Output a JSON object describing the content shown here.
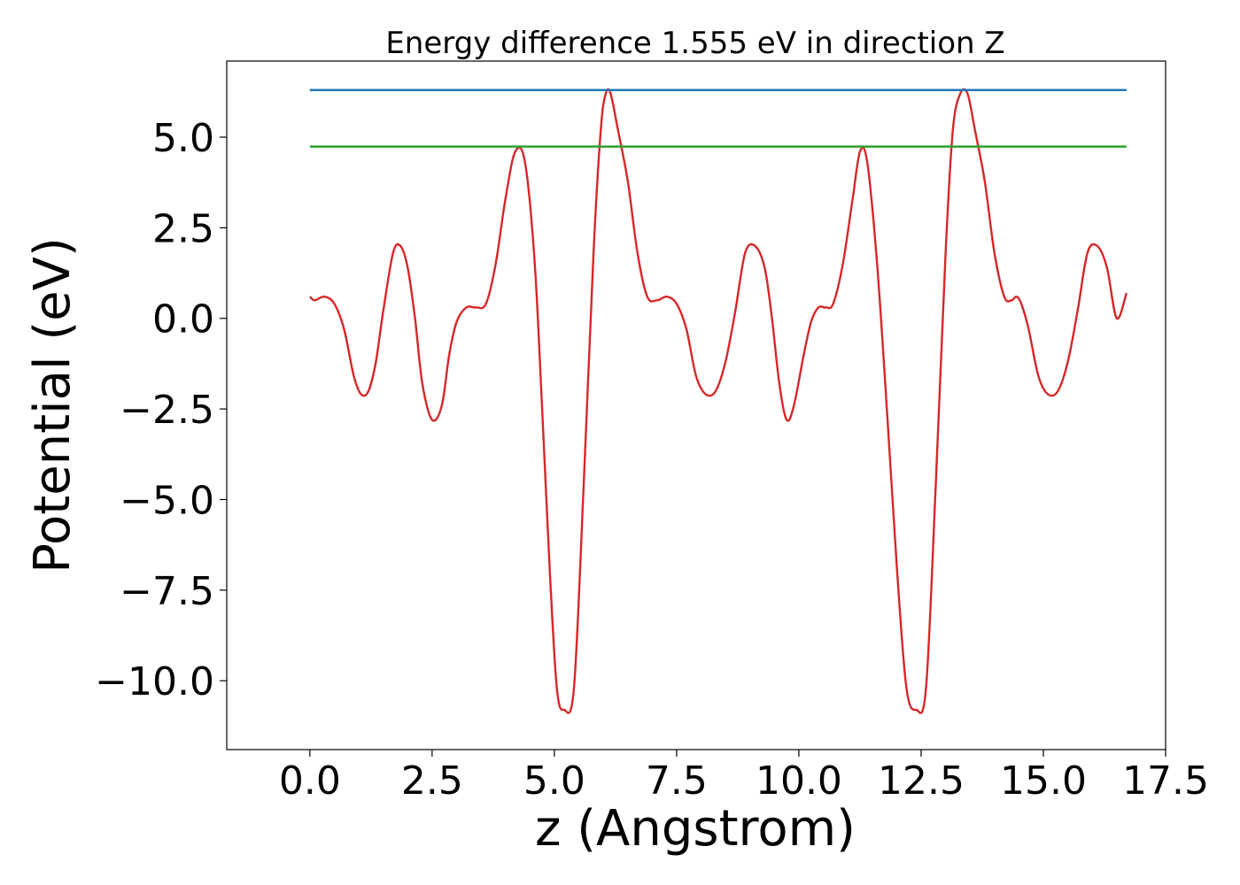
{
  "chart_data": {
    "type": "line",
    "title": "Energy difference 1.555 eV in direction Z",
    "xlabel": "z (Angstrom)",
    "ylabel": "Potential (eV)",
    "xlim": [
      -1.7,
      17.5
    ],
    "ylim": [
      -11.9,
      7.1
    ],
    "xticks": [
      0.0,
      2.5,
      5.0,
      7.5,
      10.0,
      12.5,
      15.0,
      17.5
    ],
    "xtick_labels": [
      "0.0",
      "2.5",
      "5.0",
      "7.5",
      "10.0",
      "12.5",
      "15.0",
      "17.5"
    ],
    "yticks": [
      5.0,
      2.5,
      0.0,
      -2.5,
      -5.0,
      -7.5,
      -10.0
    ],
    "ytick_labels": [
      "5.0",
      "2.5",
      "0.0",
      "−2.5",
      "−5.0",
      "−7.5",
      "−10.0"
    ],
    "grid": false,
    "legend": "none",
    "series": [
      {
        "color": "#d62728",
        "x": [
          0.0,
          0.1,
          0.3,
          0.5,
          0.7,
          0.9,
          1.05,
          1.2,
          1.35,
          1.5,
          1.7,
          1.85,
          2.0,
          2.15,
          2.3,
          2.5,
          2.7,
          2.85,
          3.0,
          3.2,
          3.4,
          3.6,
          3.8,
          4.0,
          4.2,
          4.4,
          4.6,
          4.75,
          4.9,
          5.05,
          5.2,
          5.4,
          5.6,
          5.8,
          5.95,
          6.05,
          6.15,
          6.3,
          6.5,
          6.7,
          6.9,
          7.1,
          7.3,
          7.5,
          7.7,
          7.9,
          8.1,
          8.3,
          8.5,
          8.7,
          8.9,
          9.1,
          9.3,
          9.45,
          9.6,
          9.75,
          9.9,
          10.1,
          10.25,
          10.4,
          10.55,
          10.7,
          10.9,
          11.1,
          11.25,
          11.4,
          11.6,
          11.8,
          12.0,
          12.2,
          12.4,
          12.6,
          12.8,
          13.0,
          13.15,
          13.3,
          13.45,
          13.6,
          13.8,
          14.0,
          14.2,
          14.35,
          14.45,
          14.55,
          14.7,
          14.9,
          15.1,
          15.3,
          15.5,
          15.7,
          15.9,
          16.1,
          16.3,
          16.5,
          16.7
        ],
        "values": [
          0.6,
          0.5,
          0.6,
          0.4,
          -0.3,
          -1.6,
          -2.1,
          -2.0,
          -1.2,
          0.2,
          1.8,
          2.0,
          1.4,
          0.0,
          -1.8,
          -2.8,
          -2.4,
          -1.0,
          -0.1,
          0.3,
          0.3,
          0.4,
          1.5,
          3.3,
          4.6,
          4.3,
          1.5,
          -2.5,
          -6.8,
          -10.2,
          -10.8,
          -10.2,
          -4.6,
          1.8,
          5.2,
          6.2,
          6.2,
          5.2,
          3.8,
          1.8,
          0.6,
          0.5,
          0.6,
          0.4,
          -0.3,
          -1.6,
          -2.1,
          -2.0,
          -1.2,
          0.2,
          1.8,
          2.0,
          1.4,
          0.0,
          -1.8,
          -2.8,
          -2.4,
          -1.0,
          -0.1,
          0.3,
          0.3,
          0.4,
          1.5,
          3.3,
          4.6,
          4.3,
          1.5,
          -2.5,
          -6.8,
          -10.2,
          -10.8,
          -10.2,
          -4.6,
          1.8,
          5.2,
          6.2,
          6.2,
          5.2,
          3.8,
          1.8,
          0.6,
          0.5,
          0.6,
          0.4,
          -0.3,
          -1.6,
          -2.1,
          -2.0,
          -1.2,
          0.2,
          1.8,
          2.0,
          1.4,
          0.0,
          0.7
        ]
      },
      {
        "color": "#1f77b4",
        "x": [
          0.0,
          16.7
        ],
        "values": [
          6.3,
          6.3
        ]
      },
      {
        "color": "#2ca02c",
        "x": [
          0.0,
          16.7
        ],
        "values": [
          4.74,
          4.74
        ]
      }
    ]
  }
}
